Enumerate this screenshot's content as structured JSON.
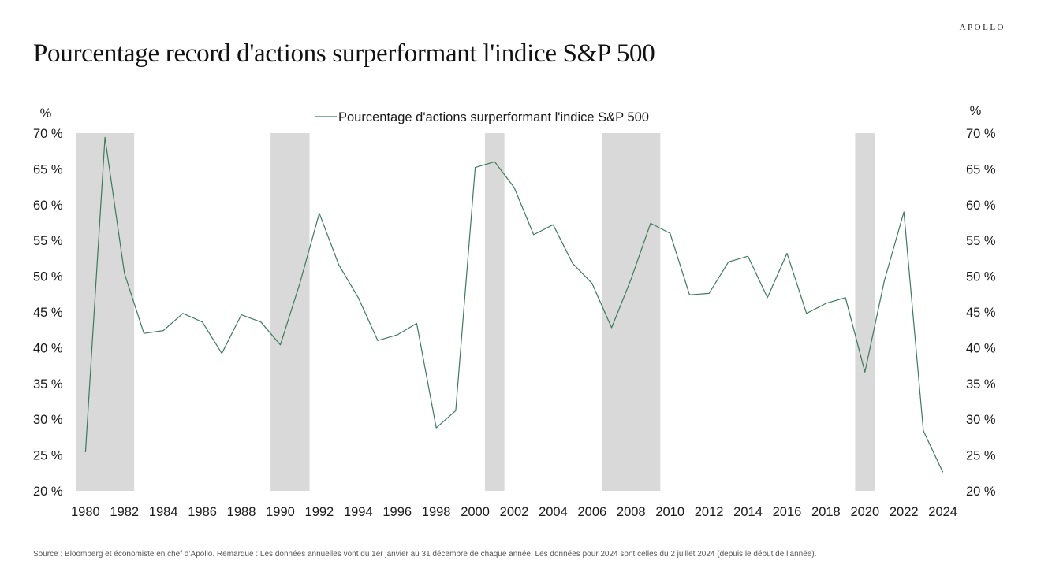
{
  "brand": "APOLLO",
  "title": "Pourcentage record d'actions surperformant l'indice S&P 500",
  "source": "Source : Bloomberg et économiste en chef d’Apollo. Remarque : Les données annuelles vont du 1er janvier au 31 décembre de chaque année. Les données pour 2024 sont celles du 2 juillet 2024 (depuis le début de l’année).",
  "chart_data": {
    "type": "line",
    "xlabel": "",
    "ylabel_left": "%",
    "ylabel_right": "%",
    "ylim": [
      20,
      70
    ],
    "xlim": [
      1979.5,
      2024.5
    ],
    "yticks": [
      20,
      25,
      30,
      35,
      40,
      45,
      50,
      55,
      60,
      65,
      70
    ],
    "ytick_labels": [
      "20 %",
      "25 %",
      "30 %",
      "35 %",
      "40 %",
      "45 %",
      "50 %",
      "55 %",
      "60 %",
      "65 %",
      "70 %"
    ],
    "xticks": [
      1980,
      1982,
      1984,
      1986,
      1988,
      1990,
      1992,
      1994,
      1996,
      1998,
      2000,
      2002,
      2004,
      2006,
      2008,
      2010,
      2012,
      2014,
      2016,
      2018,
      2020,
      2022,
      2024
    ],
    "xtick_labels": [
      "1980",
      "1982",
      "1984",
      "1986",
      "1988",
      "1990",
      "1992",
      "1994",
      "1996",
      "1998",
      "2000",
      "2002",
      "2004",
      "2006",
      "2008",
      "2010",
      "2012",
      "2014",
      "2016",
      "2018",
      "2020",
      "2022",
      "2024"
    ],
    "grid": false,
    "legend": "top-center",
    "line_color": "#3d7a5e",
    "recession_color": "#d9d9d9",
    "recessions": [
      [
        1979.5,
        1982.5
      ],
      [
        1989.5,
        1991.5
      ],
      [
        2000.5,
        2001.5
      ],
      [
        2006.5,
        2009.5
      ],
      [
        2019.5,
        2020.5
      ]
    ],
    "series": [
      {
        "name": "Pourcentage d'actions surperformant l'indice S&P 500",
        "x": [
          1980,
          1981,
          1982,
          1983,
          1984,
          1985,
          1986,
          1987,
          1988,
          1989,
          1990,
          1991,
          1992,
          1993,
          1994,
          1995,
          1996,
          1997,
          1998,
          1999,
          2000,
          2001,
          2002,
          2003,
          2004,
          2005,
          2006,
          2007,
          2008,
          2009,
          2010,
          2011,
          2012,
          2013,
          2014,
          2015,
          2016,
          2017,
          2018,
          2019,
          2020,
          2021,
          2022,
          2023,
          2024
        ],
        "values": [
          25.4,
          69.4,
          50.4,
          42.0,
          42.4,
          44.8,
          43.6,
          39.2,
          44.6,
          43.6,
          40.4,
          49.0,
          58.8,
          51.6,
          47.0,
          41.0,
          41.8,
          43.4,
          28.8,
          31.2,
          65.2,
          66.0,
          62.4,
          55.8,
          57.2,
          51.8,
          49.0,
          42.8,
          49.6,
          57.4,
          56.0,
          47.4,
          47.6,
          52.0,
          52.8,
          47.0,
          53.2,
          44.8,
          46.2,
          47.0,
          36.6,
          49.4,
          59.0,
          28.4,
          22.6
        ]
      }
    ]
  }
}
